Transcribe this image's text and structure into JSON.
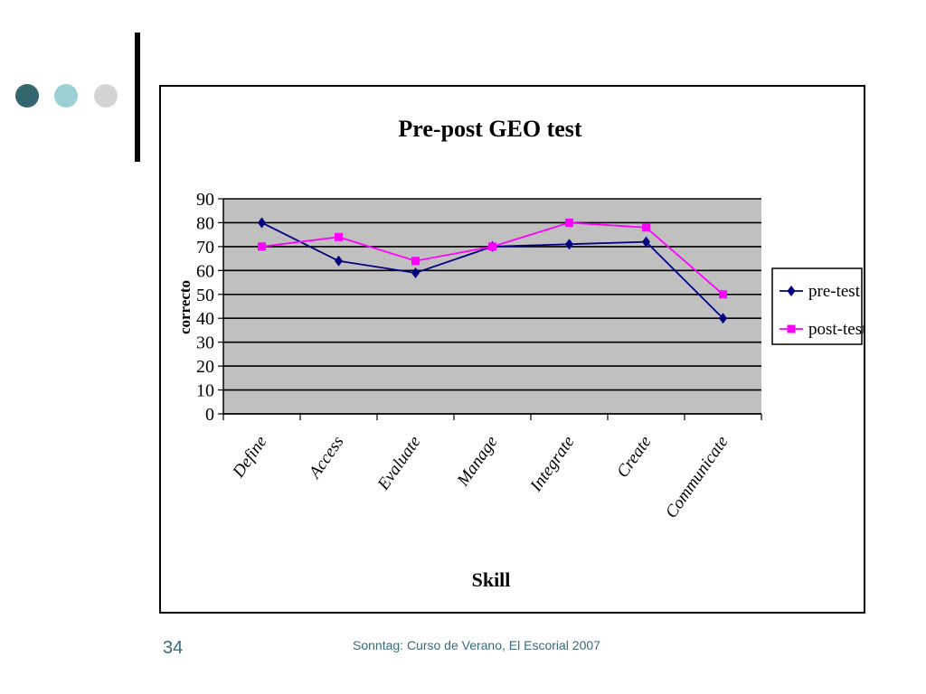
{
  "decor": {
    "dot_colors": [
      "#33666e",
      "#9dd0d4",
      "#d4d4d4"
    ]
  },
  "slide": {
    "number": "34",
    "footer": "Sonntag: Curso de Verano, El Escorial 2007"
  },
  "chart_data": {
    "type": "line",
    "title": "Pre-post GEO test",
    "xlabel": "Skill",
    "ylabel": "correcto",
    "categories": [
      "Define",
      "Access",
      "Evaluate",
      "Manage",
      "Integrate",
      "Create",
      "Communicate"
    ],
    "ylim": [
      0,
      90
    ],
    "yticks": [
      0,
      10,
      20,
      30,
      40,
      50,
      60,
      70,
      80,
      90
    ],
    "grid": true,
    "plot_background": "#c0c0c0",
    "legend_position": "right",
    "series": [
      {
        "name": "pre-test",
        "color": "#000080",
        "marker": "diamond",
        "values": [
          80,
          64,
          59,
          70,
          71,
          72,
          40
        ]
      },
      {
        "name": "post-test",
        "color": "#ff00ff",
        "marker": "square",
        "values": [
          70,
          74,
          64,
          70,
          80,
          78,
          50
        ]
      }
    ]
  }
}
